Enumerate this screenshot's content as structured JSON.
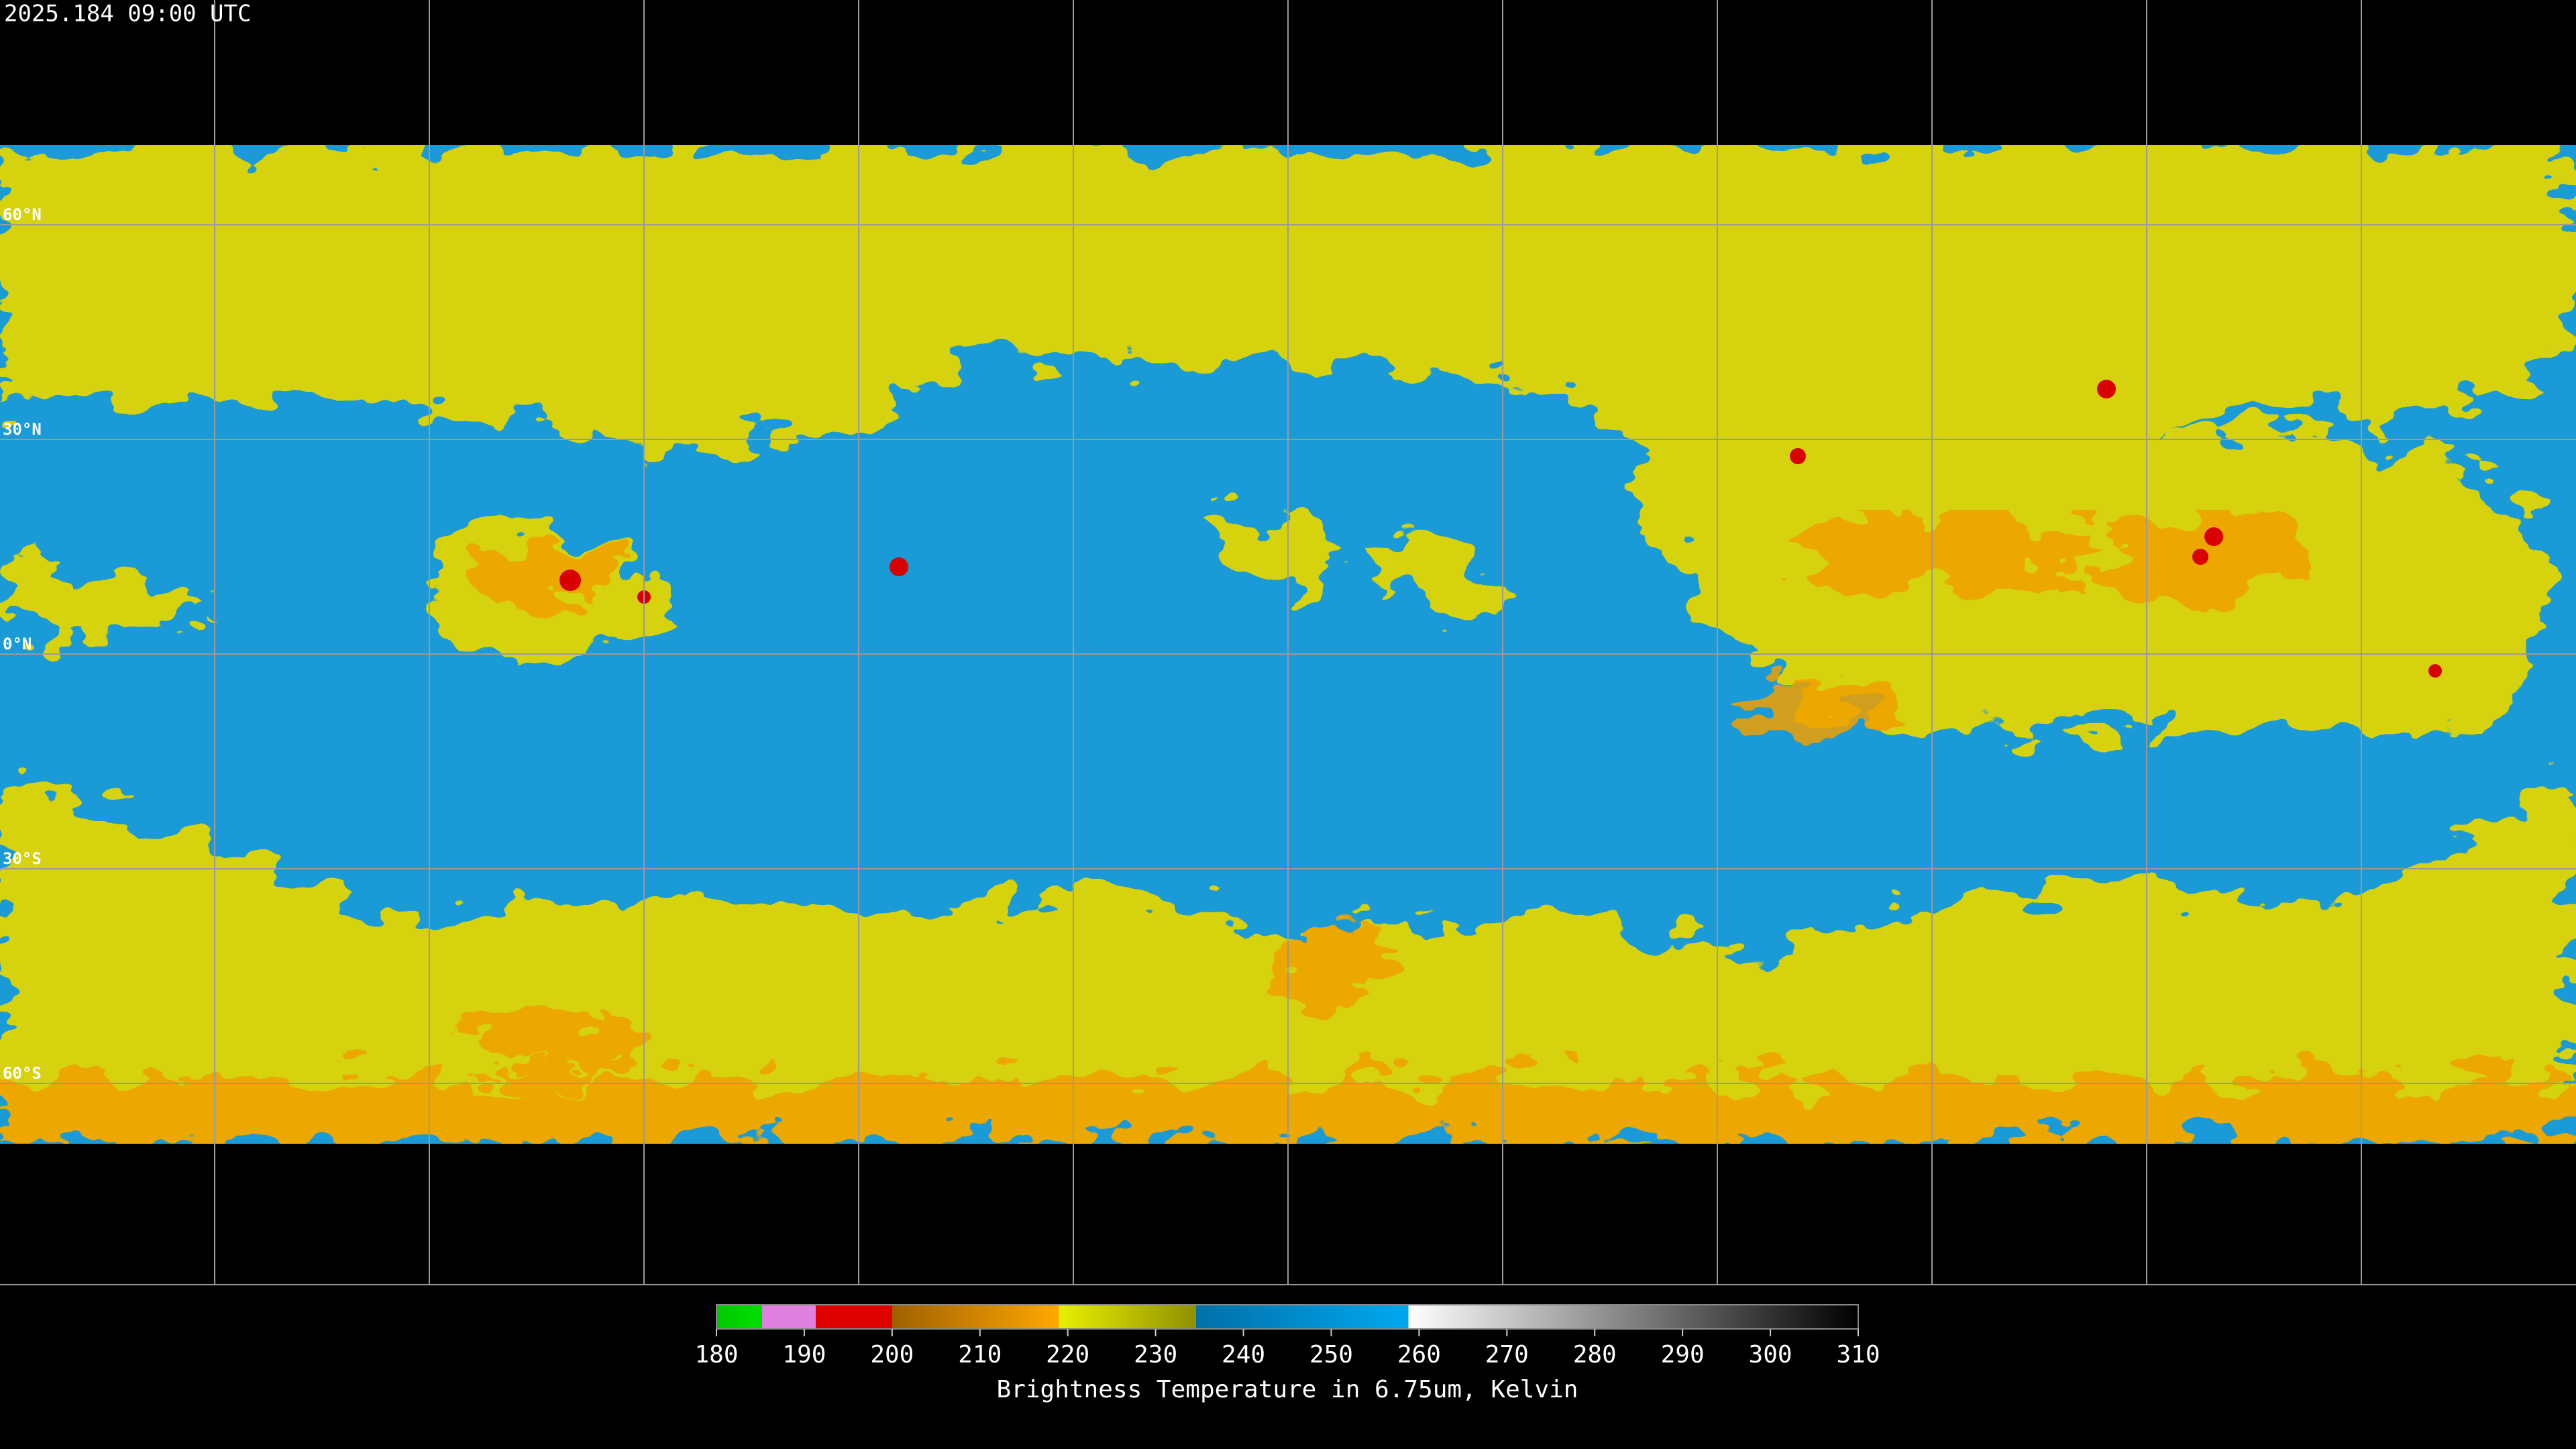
{
  "header": {
    "timestamp": "2025.184 09:00 UTC"
  },
  "map": {
    "latitudes": [
      {
        "value": 60,
        "label": "60°N"
      },
      {
        "value": 30,
        "label": "30°N"
      },
      {
        "value": 0,
        "label": "0°N"
      },
      {
        "value": -30,
        "label": "30°S"
      },
      {
        "value": -60,
        "label": "60°S"
      }
    ]
  },
  "colorbar": {
    "lim": [
      180,
      310
    ],
    "ticks": [
      180,
      190,
      200,
      210,
      220,
      230,
      240,
      250,
      260,
      270,
      280,
      290,
      300,
      310
    ],
    "title": "Brightness Temperature in 6.75um, Kelvin"
  }
}
